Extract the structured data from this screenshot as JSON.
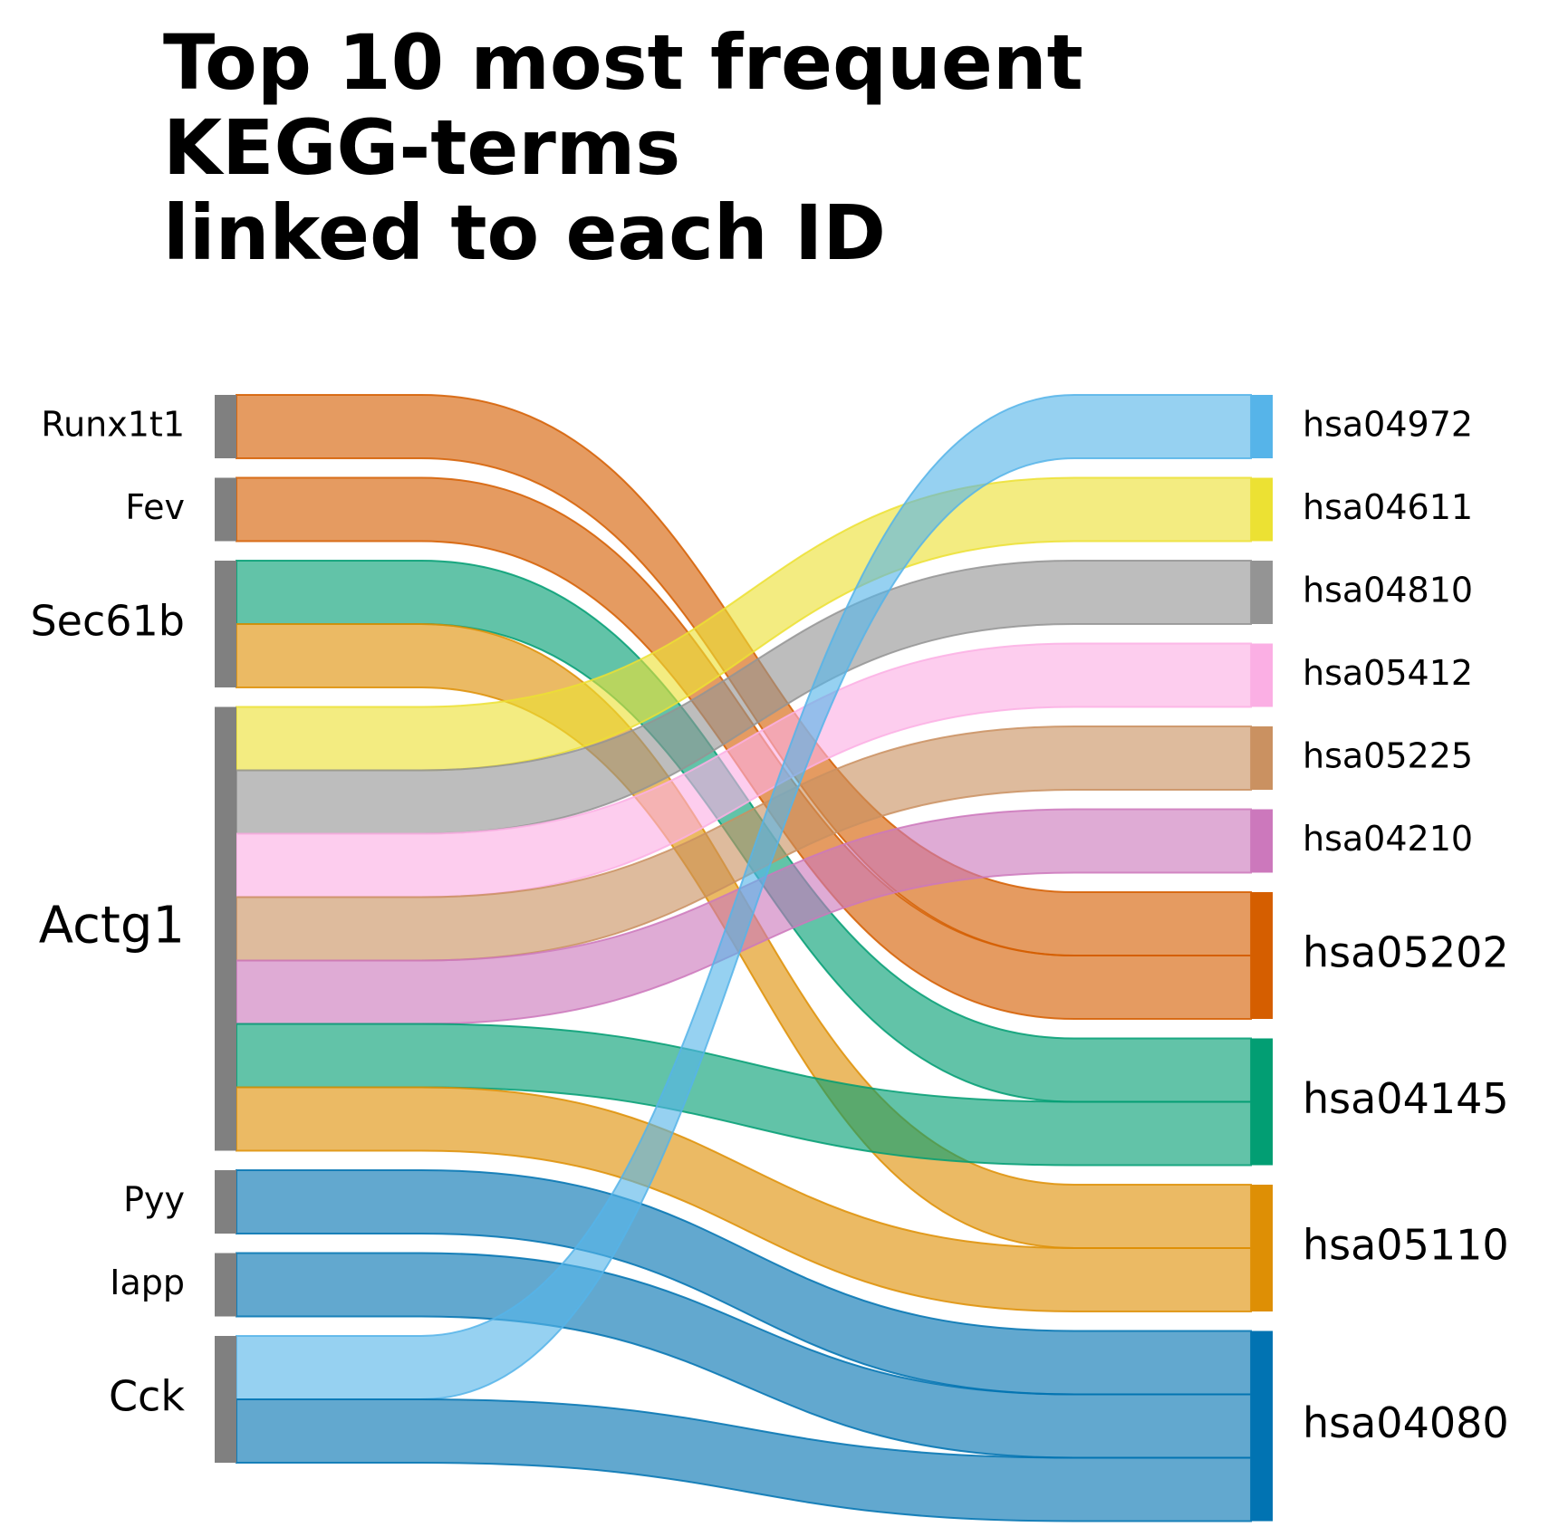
{
  "chart_data": {
    "type": "sankey",
    "title": "Top 10 most frequent\nKEGG-terms\nlinked to each ID",
    "left_nodes": [
      {
        "id": "Runx1t1",
        "label": "Runx1t1",
        "color": "#808080"
      },
      {
        "id": "Fev",
        "label": "Fev",
        "color": "#808080"
      },
      {
        "id": "Sec61b",
        "label": "Sec61b",
        "color": "#808080"
      },
      {
        "id": "Actg1",
        "label": "Actg1",
        "color": "#808080"
      },
      {
        "id": "Pyy",
        "label": "Pyy",
        "color": "#808080"
      },
      {
        "id": "Iapp",
        "label": "Iapp",
        "color": "#808080"
      },
      {
        "id": "Cck",
        "label": "Cck",
        "color": "#808080"
      }
    ],
    "right_nodes": [
      {
        "id": "hsa04972",
        "label": "hsa04972",
        "color": "#56b4e9"
      },
      {
        "id": "hsa04611",
        "label": "hsa04611",
        "color": "#ece133"
      },
      {
        "id": "hsa04810",
        "label": "hsa04810",
        "color": "#949494"
      },
      {
        "id": "hsa05412",
        "label": "hsa05412",
        "color": "#fbafe4"
      },
      {
        "id": "hsa05225",
        "label": "hsa05225",
        "color": "#ca9161"
      },
      {
        "id": "hsa04210",
        "label": "hsa04210",
        "color": "#cc78bc"
      },
      {
        "id": "hsa05202",
        "label": "hsa05202",
        "color": "#d55e00"
      },
      {
        "id": "hsa04145",
        "label": "hsa04145",
        "color": "#029e73"
      },
      {
        "id": "hsa05110",
        "label": "hsa05110",
        "color": "#de8f05"
      },
      {
        "id": "hsa04080",
        "label": "hsa04080",
        "color": "#0173b2"
      }
    ],
    "links": [
      {
        "source": "Runx1t1",
        "target": "hsa05202",
        "value": 1
      },
      {
        "source": "Fev",
        "target": "hsa05202",
        "value": 1
      },
      {
        "source": "Sec61b",
        "target": "hsa04145",
        "value": 1
      },
      {
        "source": "Sec61b",
        "target": "hsa05110",
        "value": 1
      },
      {
        "source": "Actg1",
        "target": "hsa04611",
        "value": 1
      },
      {
        "source": "Actg1",
        "target": "hsa04810",
        "value": 1
      },
      {
        "source": "Actg1",
        "target": "hsa05412",
        "value": 1
      },
      {
        "source": "Actg1",
        "target": "hsa05225",
        "value": 1
      },
      {
        "source": "Actg1",
        "target": "hsa04210",
        "value": 1
      },
      {
        "source": "Actg1",
        "target": "hsa04145",
        "value": 1
      },
      {
        "source": "Actg1",
        "target": "hsa05110",
        "value": 1
      },
      {
        "source": "Pyy",
        "target": "hsa04080",
        "value": 1
      },
      {
        "source": "Iapp",
        "target": "hsa04080",
        "value": 1
      },
      {
        "source": "Cck",
        "target": "hsa04972",
        "value": 1
      },
      {
        "source": "Cck",
        "target": "hsa04080",
        "value": 1
      }
    ]
  }
}
